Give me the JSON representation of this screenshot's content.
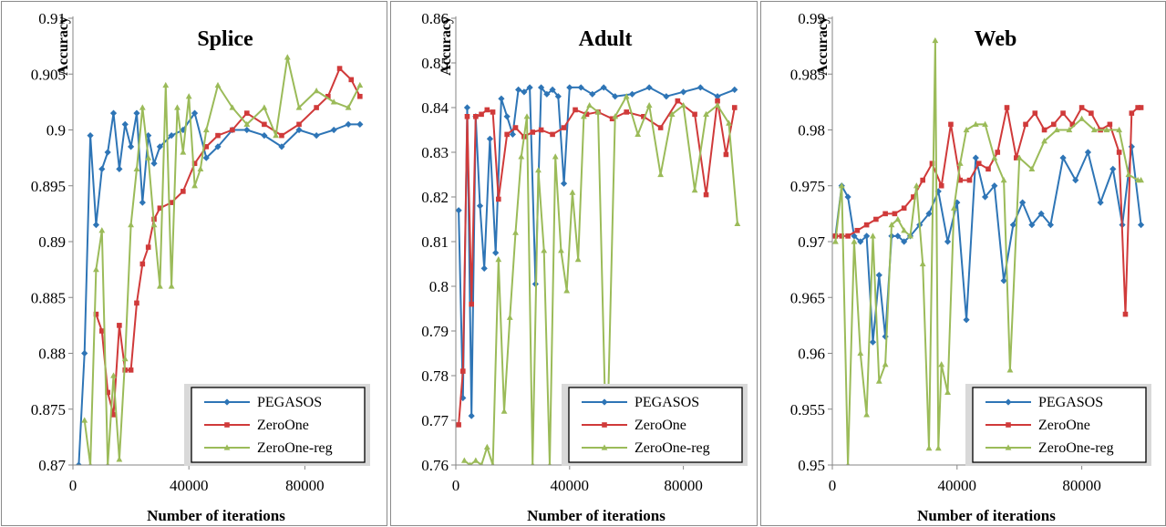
{
  "legend": [
    "PEGASOS",
    "ZeroOne",
    "ZeroOne-reg"
  ],
  "colors": {
    "PEGASOS": "#2e75b6",
    "ZeroOne": "#d03a3a",
    "ZeroOne-reg": "#9bbb59"
  },
  "chart_data": [
    {
      "type": "line",
      "title": "Splice",
      "xlabel": "Number of iterations",
      "ylabel": "Accuracy",
      "xlim": [
        0,
        100000
      ],
      "ylim": [
        0.87,
        0.91
      ],
      "xticks": [
        "0",
        "40000",
        "80000"
      ],
      "yticks": [
        "0.87",
        "0.875",
        "0.88",
        "0.885",
        "0.89",
        "0.895",
        "0.9",
        "0.905",
        "0.91"
      ],
      "legend_position": "bottom-right",
      "series": [
        {
          "name": "PEGASOS",
          "x": [
            2000,
            4000,
            6000,
            8000,
            10000,
            12000,
            14000,
            16000,
            18000,
            20000,
            22000,
            24000,
            26000,
            28000,
            30000,
            34000,
            38000,
            42000,
            46000,
            50000,
            55000,
            60000,
            66000,
            72000,
            78000,
            84000,
            90000,
            95000,
            99000
          ],
          "y": [
            0.87,
            0.88,
            0.8995,
            0.8915,
            0.8965,
            0.898,
            0.9015,
            0.8965,
            0.9005,
            0.8985,
            0.9015,
            0.8935,
            0.8995,
            0.897,
            0.8985,
            0.8995,
            0.9,
            0.9015,
            0.8975,
            0.8985,
            0.9,
            0.9,
            0.8995,
            0.8985,
            0.9,
            0.8995,
            0.9,
            0.9005,
            0.9005
          ]
        },
        {
          "name": "ZeroOne",
          "x": [
            8000,
            10000,
            12000,
            14000,
            16000,
            18000,
            20000,
            22000,
            24000,
            26000,
            28000,
            30000,
            34000,
            38000,
            42000,
            46000,
            50000,
            55000,
            60000,
            66000,
            72000,
            78000,
            84000,
            88000,
            92000,
            96000,
            99000
          ],
          "y": [
            0.8835,
            0.882,
            0.8765,
            0.8745,
            0.8825,
            0.8785,
            0.8785,
            0.8845,
            0.888,
            0.8895,
            0.892,
            0.893,
            0.8935,
            0.8945,
            0.897,
            0.8985,
            0.8995,
            0.9,
            0.9015,
            0.9005,
            0.8995,
            0.9005,
            0.902,
            0.903,
            0.9055,
            0.9045,
            0.903
          ]
        },
        {
          "name": "ZeroOne-reg",
          "x": [
            4000,
            6000,
            8000,
            10000,
            12000,
            14000,
            16000,
            18000,
            20000,
            22000,
            24000,
            26000,
            28000,
            30000,
            32000,
            34000,
            36000,
            38000,
            40000,
            42000,
            44000,
            46000,
            50000,
            55000,
            60000,
            66000,
            70000,
            74000,
            78000,
            84000,
            90000,
            95000,
            99000
          ],
          "y": [
            0.874,
            0.87,
            0.8875,
            0.891,
            0.87,
            0.878,
            0.8705,
            0.8795,
            0.8915,
            0.8965,
            0.902,
            0.8975,
            0.8915,
            0.886,
            0.904,
            0.886,
            0.902,
            0.898,
            0.903,
            0.895,
            0.8965,
            0.9,
            0.904,
            0.902,
            0.9005,
            0.902,
            0.8995,
            0.9065,
            0.902,
            0.9035,
            0.9025,
            0.902,
            0.904
          ]
        }
      ]
    },
    {
      "type": "line",
      "title": "Adult",
      "xlabel": "Number of iterations",
      "ylabel": "Accuracy",
      "xlim": [
        0,
        100000
      ],
      "ylim": [
        0.76,
        0.86
      ],
      "xticks": [
        "0",
        "40000",
        "80000"
      ],
      "yticks": [
        "0.76",
        "0.77",
        "0.78",
        "0.79",
        "0.8",
        "0.81",
        "0.82",
        "0.83",
        "0.84",
        "0.85",
        "0.86"
      ],
      "legend_position": "bottom-right",
      "series": [
        {
          "name": "PEGASOS",
          "x": [
            1000,
            2500,
            4000,
            5500,
            7000,
            8500,
            10000,
            12000,
            14000,
            16000,
            18000,
            20000,
            22000,
            24000,
            26000,
            28000,
            30000,
            32000,
            34000,
            36000,
            38000,
            40000,
            44000,
            48000,
            52000,
            56000,
            62000,
            68000,
            74000,
            80000,
            86000,
            92000,
            98000
          ],
          "y": [
            0.817,
            0.775,
            0.84,
            0.771,
            0.838,
            0.818,
            0.804,
            0.833,
            0.8075,
            0.842,
            0.838,
            0.834,
            0.844,
            0.8435,
            0.8445,
            0.8005,
            0.8445,
            0.843,
            0.844,
            0.8425,
            0.823,
            0.8445,
            0.8445,
            0.843,
            0.8445,
            0.8425,
            0.843,
            0.8445,
            0.8425,
            0.8435,
            0.8445,
            0.8425,
            0.844
          ]
        },
        {
          "name": "ZeroOne",
          "x": [
            1000,
            2500,
            4000,
            5500,
            7000,
            9000,
            11000,
            13000,
            15000,
            18000,
            21000,
            24000,
            27000,
            30000,
            34000,
            38000,
            42000,
            46000,
            50000,
            55000,
            60000,
            66000,
            72000,
            78000,
            84000,
            88000,
            92000,
            95000,
            98000
          ],
          "y": [
            0.769,
            0.781,
            0.838,
            0.796,
            0.838,
            0.8385,
            0.8395,
            0.839,
            0.8195,
            0.834,
            0.8355,
            0.8335,
            0.8345,
            0.835,
            0.834,
            0.8355,
            0.8395,
            0.8385,
            0.839,
            0.8375,
            0.839,
            0.838,
            0.8355,
            0.8415,
            0.8385,
            0.8205,
            0.8415,
            0.8295,
            0.84
          ]
        },
        {
          "name": "ZeroOne-reg",
          "x": [
            3000,
            5000,
            7000,
            9000,
            11000,
            13000,
            15000,
            17000,
            19000,
            21000,
            23000,
            25000,
            27000,
            29000,
            31000,
            33000,
            35000,
            37000,
            39000,
            41000,
            43000,
            45000,
            47000,
            50000,
            53000,
            56000,
            60000,
            64000,
            68000,
            72000,
            76000,
            80000,
            84000,
            88000,
            92000,
            96000,
            99000
          ],
          "y": [
            0.761,
            0.76,
            0.761,
            0.76,
            0.764,
            0.76,
            0.806,
            0.772,
            0.793,
            0.812,
            0.829,
            0.838,
            0.76,
            0.826,
            0.808,
            0.76,
            0.829,
            0.808,
            0.799,
            0.821,
            0.806,
            0.838,
            0.8405,
            0.839,
            0.76,
            0.838,
            0.8425,
            0.834,
            0.8405,
            0.825,
            0.8385,
            0.8405,
            0.8215,
            0.8385,
            0.8405,
            0.8365,
            0.814
          ]
        }
      ]
    },
    {
      "type": "line",
      "title": "Web",
      "xlabel": "Number of iterations",
      "ylabel": "Accuracy",
      "xlim": [
        0,
        100000
      ],
      "ylim": [
        0.95,
        0.99
      ],
      "xticks": [
        "0",
        "40000",
        "80000"
      ],
      "yticks": [
        "0.95",
        "0.955",
        "0.96",
        "0.965",
        "0.97",
        "0.975",
        "0.98",
        "0.985",
        "0.99"
      ],
      "legend_position": "bottom-right",
      "series": [
        {
          "name": "PEGASOS",
          "x": [
            1000,
            3000,
            5000,
            7000,
            9000,
            11000,
            13000,
            15000,
            17000,
            19000,
            21000,
            23000,
            25000,
            28000,
            31000,
            34000,
            37000,
            40000,
            43000,
            46000,
            49000,
            52000,
            55000,
            58000,
            61000,
            64000,
            67000,
            70000,
            74000,
            78000,
            82000,
            86000,
            90000,
            93000,
            96000,
            99000
          ],
          "y": [
            0.9705,
            0.975,
            0.974,
            0.9705,
            0.97,
            0.9705,
            0.961,
            0.967,
            0.9615,
            0.9705,
            0.9705,
            0.97,
            0.9705,
            0.9715,
            0.9725,
            0.9745,
            0.97,
            0.9735,
            0.963,
            0.9775,
            0.974,
            0.975,
            0.9665,
            0.9715,
            0.9735,
            0.9715,
            0.9725,
            0.9715,
            0.9775,
            0.9755,
            0.978,
            0.9735,
            0.9765,
            0.9715,
            0.9785,
            0.9715
          ]
        },
        {
          "name": "ZeroOne",
          "x": [
            1000,
            3000,
            5000,
            8000,
            11000,
            14000,
            17000,
            20000,
            23000,
            26000,
            29000,
            32000,
            35000,
            38000,
            41000,
            44000,
            47000,
            50000,
            53000,
            56000,
            59000,
            62000,
            65000,
            68000,
            71000,
            74000,
            77000,
            80000,
            83000,
            86000,
            89000,
            92000,
            94000,
            96000,
            98000,
            99000
          ],
          "y": [
            0.9705,
            0.9705,
            0.9705,
            0.971,
            0.9715,
            0.972,
            0.9725,
            0.9725,
            0.973,
            0.974,
            0.9755,
            0.977,
            0.975,
            0.9805,
            0.9755,
            0.9755,
            0.977,
            0.9765,
            0.978,
            0.982,
            0.9775,
            0.9805,
            0.9815,
            0.98,
            0.9805,
            0.9815,
            0.9805,
            0.982,
            0.9815,
            0.98,
            0.9805,
            0.978,
            0.9635,
            0.9815,
            0.982,
            0.982
          ]
        },
        {
          "name": "ZeroOne-reg",
          "x": [
            1000,
            3000,
            5000,
            7000,
            9000,
            11000,
            13000,
            15000,
            17000,
            19000,
            21000,
            23000,
            25000,
            27000,
            29000,
            31000,
            33000,
            34000,
            35000,
            37000,
            39000,
            41000,
            43000,
            46000,
            49000,
            52000,
            55000,
            57000,
            60000,
            64000,
            68000,
            72000,
            76000,
            80000,
            84000,
            88000,
            92000,
            95000,
            98000,
            99000
          ],
          "y": [
            0.97,
            0.975,
            0.95,
            0.97,
            0.96,
            0.9545,
            0.9705,
            0.9575,
            0.959,
            0.9715,
            0.972,
            0.971,
            0.9705,
            0.975,
            0.968,
            0.9515,
            0.988,
            0.9515,
            0.959,
            0.9565,
            0.973,
            0.977,
            0.98,
            0.9805,
            0.9805,
            0.9775,
            0.9755,
            0.9585,
            0.9775,
            0.9765,
            0.979,
            0.98,
            0.98,
            0.981,
            0.98,
            0.98,
            0.98,
            0.976,
            0.9755,
            0.9755
          ]
        }
      ]
    }
  ]
}
